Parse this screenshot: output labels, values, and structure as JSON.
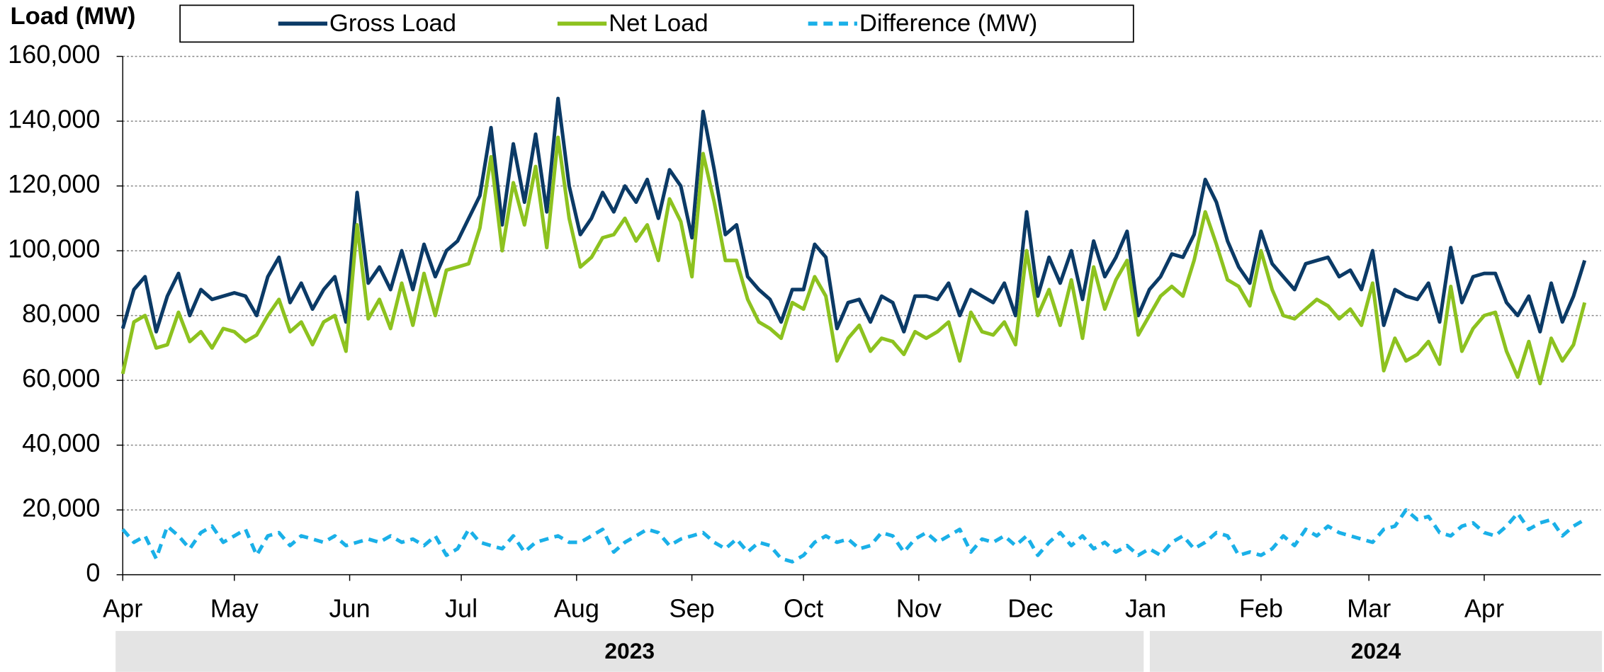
{
  "chart_data": {
    "type": "line",
    "y_axis_title": "Load (MW)",
    "x": [
      "2023-04-01",
      "2023-04-04",
      "2023-04-07",
      "2023-04-10",
      "2023-04-13",
      "2023-04-16",
      "2023-04-19",
      "2023-04-22",
      "2023-04-25",
      "2023-04-28",
      "2023-05-01",
      "2023-05-04",
      "2023-05-07",
      "2023-05-10",
      "2023-05-13",
      "2023-05-16",
      "2023-05-19",
      "2023-05-22",
      "2023-05-25",
      "2023-05-28",
      "2023-05-31",
      "2023-06-03",
      "2023-06-06",
      "2023-06-09",
      "2023-06-12",
      "2023-06-15",
      "2023-06-18",
      "2023-06-21",
      "2023-06-24",
      "2023-06-27",
      "2023-06-30",
      "2023-07-03",
      "2023-07-06",
      "2023-07-09",
      "2023-07-12",
      "2023-07-15",
      "2023-07-18",
      "2023-07-21",
      "2023-07-24",
      "2023-07-27",
      "2023-07-30",
      "2023-08-02",
      "2023-08-05",
      "2023-08-08",
      "2023-08-11",
      "2023-08-14",
      "2023-08-17",
      "2023-08-20",
      "2023-08-23",
      "2023-08-26",
      "2023-08-29",
      "2023-09-01",
      "2023-09-04",
      "2023-09-07",
      "2023-09-10",
      "2023-09-13",
      "2023-09-16",
      "2023-09-19",
      "2023-09-22",
      "2023-09-25",
      "2023-09-28",
      "2023-10-01",
      "2023-10-04",
      "2023-10-07",
      "2023-10-10",
      "2023-10-13",
      "2023-10-16",
      "2023-10-19",
      "2023-10-22",
      "2023-10-25",
      "2023-10-28",
      "2023-10-31",
      "2023-11-03",
      "2023-11-06",
      "2023-11-09",
      "2023-11-12",
      "2023-11-15",
      "2023-11-18",
      "2023-11-21",
      "2023-11-24",
      "2023-11-27",
      "2023-11-30",
      "2023-12-03",
      "2023-12-06",
      "2023-12-09",
      "2023-12-12",
      "2023-12-15",
      "2023-12-18",
      "2023-12-21",
      "2023-12-24",
      "2023-12-27",
      "2023-12-30",
      "2024-01-02",
      "2024-01-05",
      "2024-01-08",
      "2024-01-11",
      "2024-01-14",
      "2024-01-17",
      "2024-01-20",
      "2024-01-23",
      "2024-01-26",
      "2024-01-29",
      "2024-02-01",
      "2024-02-04",
      "2024-02-07",
      "2024-02-10",
      "2024-02-13",
      "2024-02-16",
      "2024-02-19",
      "2024-02-22",
      "2024-02-25",
      "2024-02-28",
      "2024-03-02",
      "2024-03-05",
      "2024-03-08",
      "2024-03-11",
      "2024-03-14",
      "2024-03-17",
      "2024-03-20",
      "2024-03-23",
      "2024-03-26",
      "2024-03-29",
      "2024-04-01",
      "2024-04-04",
      "2024-04-07",
      "2024-04-10",
      "2024-04-13",
      "2024-04-16",
      "2024-04-19",
      "2024-04-22",
      "2024-04-25",
      "2024-04-28"
    ],
    "series": [
      {
        "name": "Gross Load",
        "color": "#0b3a66",
        "line_style": "solid",
        "values": [
          76000,
          88000,
          92000,
          75000,
          86000,
          93000,
          80000,
          88000,
          85000,
          86000,
          87000,
          86000,
          80000,
          92000,
          98000,
          84000,
          90000,
          82000,
          88000,
          92000,
          78000,
          118000,
          90000,
          95000,
          88000,
          100000,
          88000,
          102000,
          92000,
          100000,
          103000,
          110000,
          117000,
          138000,
          108000,
          133000,
          115000,
          136000,
          112000,
          147000,
          120000,
          105000,
          110000,
          118000,
          112000,
          120000,
          115000,
          122000,
          110000,
          125000,
          120000,
          104000,
          143000,
          125000,
          105000,
          108000,
          92000,
          88000,
          85000,
          78000,
          88000,
          88000,
          102000,
          98000,
          76000,
          84000,
          85000,
          78000,
          86000,
          84000,
          75000,
          86000,
          86000,
          85000,
          90000,
          80000,
          88000,
          86000,
          84000,
          90000,
          80000,
          112000,
          86000,
          98000,
          90000,
          100000,
          85000,
          103000,
          92000,
          98000,
          106000,
          80000,
          88000,
          92000,
          99000,
          98000,
          105000,
          122000,
          115000,
          103000,
          95000,
          90000,
          106000,
          96000,
          92000,
          88000,
          96000,
          97000,
          98000,
          92000,
          94000,
          88000,
          100000,
          77000,
          88000,
          86000,
          85000,
          90000,
          78000,
          101000,
          84000,
          92000,
          93000,
          93000,
          84000,
          80000,
          86000,
          75000,
          90000,
          78000,
          86000,
          97000
        ]
      },
      {
        "name": "Net Load",
        "color": "#8dc21f",
        "line_style": "solid",
        "values": [
          62000,
          78000,
          80000,
          70000,
          71000,
          81000,
          72000,
          75000,
          70000,
          76000,
          75000,
          72000,
          74000,
          80000,
          85000,
          75000,
          78000,
          71000,
          78000,
          80000,
          69000,
          108000,
          79000,
          85000,
          76000,
          90000,
          77000,
          93000,
          80000,
          94000,
          95000,
          96000,
          107000,
          129000,
          100000,
          121000,
          108000,
          126000,
          101000,
          135000,
          110000,
          95000,
          98000,
          104000,
          105000,
          110000,
          103000,
          108000,
          97000,
          116000,
          109000,
          92000,
          130000,
          115000,
          97000,
          97000,
          85000,
          78000,
          76000,
          73000,
          84000,
          82000,
          92000,
          86000,
          66000,
          73000,
          77000,
          69000,
          73000,
          72000,
          68000,
          75000,
          73000,
          75000,
          78000,
          66000,
          81000,
          75000,
          74000,
          78000,
          71000,
          100000,
          80000,
          88000,
          77000,
          91000,
          73000,
          95000,
          82000,
          91000,
          97000,
          74000,
          80000,
          86000,
          89000,
          86000,
          97000,
          112000,
          102000,
          91000,
          89000,
          83000,
          100000,
          88000,
          80000,
          79000,
          82000,
          85000,
          83000,
          79000,
          82000,
          77000,
          90000,
          63000,
          73000,
          66000,
          68000,
          72000,
          65000,
          89000,
          69000,
          76000,
          80000,
          81000,
          69000,
          61000,
          72000,
          59000,
          73000,
          66000,
          71000,
          84000
        ]
      },
      {
        "name": "Difference (MW)",
        "color": "#1ab0e8",
        "line_style": "dashed",
        "values": [
          14000,
          10000,
          12000,
          5000,
          15000,
          12000,
          8000,
          13000,
          15000,
          10000,
          12000,
          14000,
          6000,
          12000,
          13000,
          9000,
          12000,
          11000,
          10000,
          12000,
          9000,
          10000,
          11000,
          10000,
          12000,
          10000,
          11000,
          9000,
          12000,
          6000,
          8000,
          14000,
          10000,
          9000,
          8000,
          12000,
          7000,
          10000,
          11000,
          12000,
          10000,
          10000,
          12000,
          14000,
          7000,
          10000,
          12000,
          14000,
          13000,
          9000,
          11000,
          12000,
          13000,
          10000,
          8000,
          11000,
          7000,
          10000,
          9000,
          5000,
          4000,
          6000,
          10000,
          12000,
          10000,
          11000,
          8000,
          9000,
          13000,
          12000,
          7000,
          11000,
          13000,
          10000,
          12000,
          14000,
          7000,
          11000,
          10000,
          12000,
          9000,
          12000,
          6000,
          10000,
          13000,
          9000,
          12000,
          8000,
          10000,
          7000,
          9000,
          6000,
          8000,
          6000,
          10000,
          12000,
          8000,
          10000,
          13000,
          12000,
          6000,
          7000,
          6000,
          8000,
          12000,
          9000,
          14000,
          12000,
          15000,
          13000,
          12000,
          11000,
          10000,
          14000,
          15000,
          20000,
          17000,
          18000,
          13000,
          12000,
          15000,
          16000,
          13000,
          12000,
          15000,
          19000,
          14000,
          16000,
          17000,
          12000,
          15000,
          17000
        ]
      }
    ],
    "xlim": [
      "2023-04-01",
      "2024-05-01"
    ],
    "xticks": [
      {
        "value": "2023-04-01",
        "label": "Apr"
      },
      {
        "value": "2023-05-01",
        "label": "May"
      },
      {
        "value": "2023-06-01",
        "label": "Jun"
      },
      {
        "value": "2023-07-01",
        "label": "Jul"
      },
      {
        "value": "2023-08-01",
        "label": "Aug"
      },
      {
        "value": "2023-09-01",
        "label": "Sep"
      },
      {
        "value": "2023-10-01",
        "label": "Oct"
      },
      {
        "value": "2023-11-01",
        "label": "Nov"
      },
      {
        "value": "2023-12-01",
        "label": "Dec"
      },
      {
        "value": "2024-01-01",
        "label": "Jan"
      },
      {
        "value": "2024-02-01",
        "label": "Feb"
      },
      {
        "value": "2024-03-01",
        "label": "Mar"
      },
      {
        "value": "2024-04-01",
        "label": "Apr"
      }
    ],
    "year_bands": [
      {
        "label": "2023",
        "start": "2023-04-01"
      },
      {
        "label": "2024",
        "start": "2024-01-01"
      }
    ],
    "ylim": [
      0,
      160000
    ],
    "yticks": [
      0,
      {
        "value": 20000,
        "label": "20,000"
      },
      {
        "value": 40000,
        "label": "40,000"
      },
      {
        "value": 60000,
        "label": "60,000"
      },
      {
        "value": 80000,
        "label": "80,000"
      },
      {
        "value": 100000,
        "label": "100,000"
      },
      {
        "value": 120000,
        "label": "120,000"
      },
      {
        "value": 140000,
        "label": "140,000"
      },
      {
        "value": 160000,
        "label": "160,000"
      }
    ],
    "grid": true,
    "legend": "top"
  }
}
